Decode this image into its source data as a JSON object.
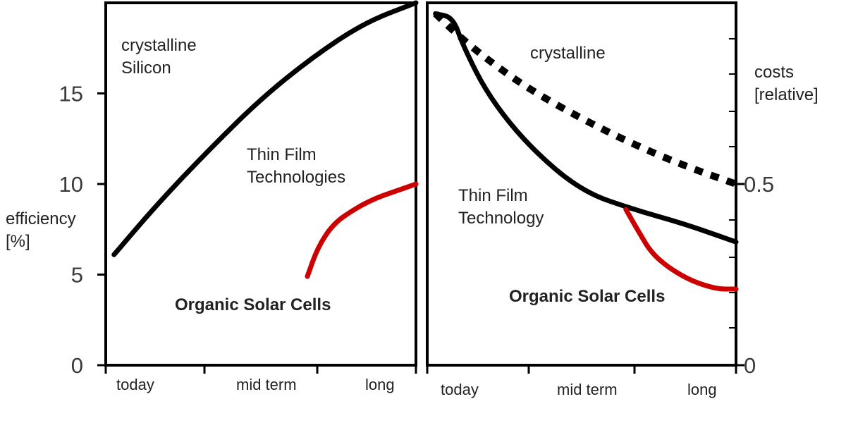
{
  "colors": {
    "silicon": "#000000",
    "thin_film": "#000000",
    "organic": "#cc0000",
    "axis": "#000000"
  },
  "chart_data": [
    {
      "type": "line",
      "xlabel": "",
      "ylabel": "efficiency [%]",
      "ylabel_lines": [
        "efficiency",
        "[%]"
      ],
      "categories": [
        "today",
        "mid  term",
        "long"
      ],
      "x_ticks": [
        0,
        1,
        2,
        3
      ],
      "xlim": [
        0,
        3
      ],
      "ylim": [
        0,
        20
      ],
      "yticks": [
        0,
        5,
        10,
        15
      ],
      "grid": false,
      "series": [
        {
          "name": "crystalline Silicon",
          "style": "solid",
          "color": "#000000",
          "x": [
            0.08,
            0.5,
            1.0,
            1.5,
            2.0,
            2.5,
            3.0
          ],
          "y": [
            6.1,
            8.9,
            11.9,
            14.7,
            17.0,
            18.9,
            20.0
          ]
        },
        {
          "name": "Organic Solar Cells",
          "style": "solid",
          "color": "#cc0000",
          "x": [
            1.95,
            2.05,
            2.2,
            2.4,
            2.6,
            2.8,
            3.0
          ],
          "y": [
            4.9,
            6.5,
            7.8,
            8.6,
            9.2,
            9.6,
            10.0
          ]
        }
      ],
      "annotations": [
        {
          "lines": [
            "crystalline",
            "Silicon"
          ],
          "color": "#000000"
        },
        {
          "lines": [
            "Thin Film",
            "Technologies"
          ],
          "color": "#000000"
        },
        {
          "lines": [
            "Organic Solar Cells"
          ],
          "color": "#cc0000"
        }
      ]
    },
    {
      "type": "line",
      "xlabel": "",
      "ylabel": "costs [relative]",
      "ylabel_lines": [
        "costs",
        "[relative]"
      ],
      "categories": [
        "today",
        "mid  term",
        "long"
      ],
      "x_ticks": [
        0,
        1,
        2,
        3
      ],
      "xlim": [
        0,
        3
      ],
      "ylim": [
        0,
        1
      ],
      "yticks": [
        0,
        0.5
      ],
      "ytick_labels": [
        "0",
        "0.5"
      ],
      "grid": false,
      "series": [
        {
          "name": "crystalline",
          "style": "dashed",
          "color": "#000000",
          "x": [
            0.08,
            0.3,
            0.6,
            1.0,
            1.5,
            2.0,
            2.5,
            3.0
          ],
          "y": [
            0.97,
            0.91,
            0.84,
            0.76,
            0.68,
            0.61,
            0.55,
            0.5
          ]
        },
        {
          "name": "Thin Film Technology",
          "style": "solid",
          "color": "#000000",
          "x": [
            0.08,
            0.25,
            0.35,
            0.6,
            1.0,
            1.5,
            2.0,
            2.5,
            3.0
          ],
          "y": [
            0.97,
            0.96,
            0.88,
            0.74,
            0.6,
            0.48,
            0.43,
            0.39,
            0.34
          ]
        },
        {
          "name": "Organic Solar Cells",
          "style": "solid",
          "color": "#cc0000",
          "x": [
            1.93,
            2.05,
            2.2,
            2.5,
            2.8,
            3.0
          ],
          "y": [
            0.43,
            0.37,
            0.3,
            0.24,
            0.21,
            0.21
          ]
        }
      ],
      "annotations": [
        {
          "lines": [
            "crystalline"
          ],
          "color": "#000000"
        },
        {
          "lines": [
            "Thin Film",
            "Technology"
          ],
          "color": "#000000"
        },
        {
          "lines": [
            "Organic Solar Cells"
          ],
          "color": "#cc0000"
        }
      ]
    }
  ]
}
